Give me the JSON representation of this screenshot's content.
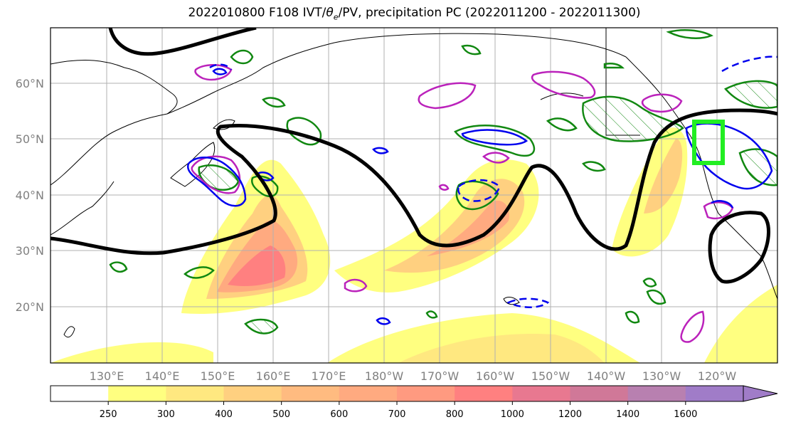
{
  "title": "2022010800 F108 IVT/θe/PV, precipitation PC (2022011200 - 2022011300)",
  "title_prefix": "2022010800 F108 IVT/",
  "title_theta": "θ",
  "title_theta_sub": "e",
  "title_suffix": "/PV, precipitation PC (2022011200 - 2022011300)",
  "map": {
    "lon_labels": [
      "130°E",
      "140°E",
      "150°E",
      "160°E",
      "170°E",
      "180°W",
      "170°W",
      "160°W",
      "150°W",
      "140°W",
      "130°W",
      "120°W"
    ],
    "lat_labels": [
      "60°N",
      "50°N",
      "40°N",
      "30°N",
      "20°N"
    ],
    "colors": {
      "grid": "#b0b0b0",
      "coast": "#000000",
      "pv_contour": "#000000",
      "theta_e_solid": "#0000ee",
      "magenta": "#bb22bb",
      "green": "#118811",
      "highlight_box": "#22ee22"
    }
  },
  "colorbar": {
    "levels": [
      "250",
      "300",
      "400",
      "500",
      "600",
      "700",
      "800",
      "1000",
      "1200",
      "1400",
      "1600"
    ],
    "colors": [
      "#ffffff",
      "#ffff80",
      "#ffe880",
      "#ffd080",
      "#ffbb80",
      "#ffaa80",
      "#ff9a80",
      "#ff8080",
      "#e87890",
      "#d07898",
      "#b880b0",
      "#a07cc8"
    ]
  }
}
